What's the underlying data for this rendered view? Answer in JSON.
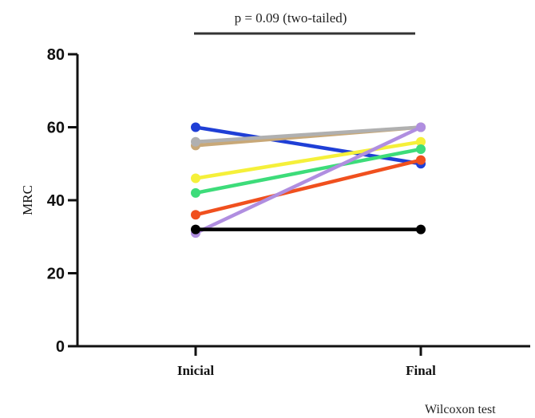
{
  "chart_data": {
    "type": "line",
    "categories": [
      "Inicial",
      "Final"
    ],
    "ylabel": "MRC",
    "xlabel": "",
    "ylim": [
      0,
      80
    ],
    "yticks": [
      0,
      20,
      40,
      60,
      80
    ],
    "annotation": "p = 0.09 (two-tailed)",
    "footnote": "Wilcoxon test",
    "grid": false,
    "series": [
      {
        "values": [
          60,
          50
        ],
        "color": "#1f3fd6"
      },
      {
        "values": [
          55,
          60
        ],
        "color": "#c8a878"
      },
      {
        "values": [
          56,
          60
        ],
        "color": "#b0b0b0"
      },
      {
        "values": [
          46,
          56
        ],
        "color": "#f5f03a"
      },
      {
        "values": [
          42,
          54
        ],
        "color": "#3ddc7a"
      },
      {
        "values": [
          36,
          51
        ],
        "color": "#f0501e"
      },
      {
        "values": [
          31,
          60
        ],
        "color": "#b08ee0"
      },
      {
        "values": [
          32,
          32
        ],
        "color": "#000000"
      }
    ]
  }
}
